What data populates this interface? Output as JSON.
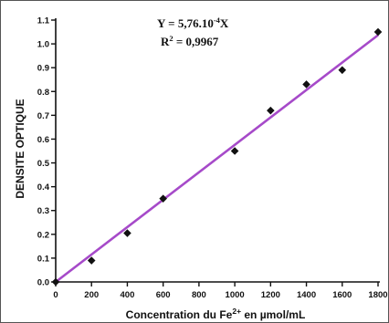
{
  "chart_data": {
    "type": "scatter",
    "xlabel": "Concentration du Fe",
    "xlabel_sup": "2+",
    "xlabel_suffix": " en µmol/mL",
    "ylabel": "DENSITE OPTIQUE",
    "equation": {
      "prefix": "Y = 5,76.10",
      "exponent": "-4",
      "suffix": "X"
    },
    "r2": {
      "prefix": "R",
      "exponent": "2",
      "suffix": " = 0,9967"
    },
    "xlim": [
      0,
      1800
    ],
    "ylim": [
      0,
      1.1
    ],
    "x_ticks": [
      "0",
      "200",
      "400",
      "600",
      "800",
      "1000",
      "1200",
      "1400",
      "1600",
      "1800"
    ],
    "y_ticks": [
      "0.0",
      "0.1",
      "0.2",
      "0.3",
      "0.4",
      "0.5",
      "0.6",
      "0.7",
      "0.8",
      "0.9",
      "1.0",
      "1.1"
    ],
    "points": [
      {
        "x": 0,
        "y": 0.0
      },
      {
        "x": 200,
        "y": 0.09
      },
      {
        "x": 400,
        "y": 0.205
      },
      {
        "x": 600,
        "y": 0.35
      },
      {
        "x": 1000,
        "y": 0.55
      },
      {
        "x": 1200,
        "y": 0.72
      },
      {
        "x": 1400,
        "y": 0.83
      },
      {
        "x": 1600,
        "y": 0.89
      },
      {
        "x": 1800,
        "y": 1.05
      }
    ],
    "fit": {
      "slope": 0.000576,
      "intercept": 0
    },
    "fit_color": "#a64ac9",
    "marker_color": "#111111",
    "grid": false
  }
}
